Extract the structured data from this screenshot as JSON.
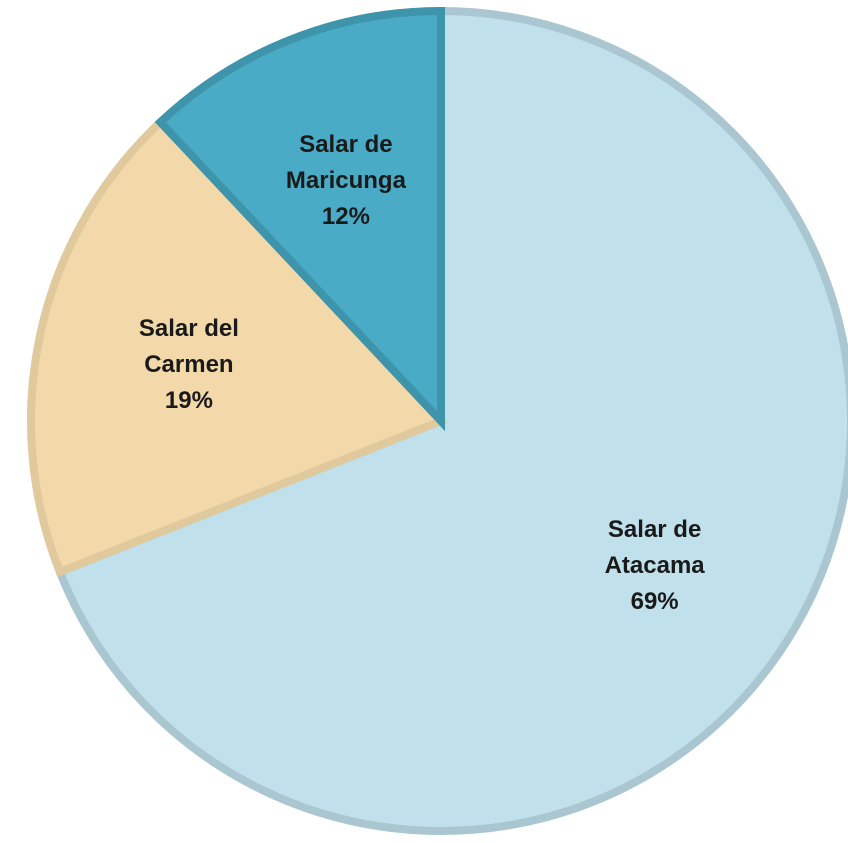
{
  "chart_data": {
    "type": "pie",
    "categories": [
      "Salar de Atacama",
      "Salar del Carmen",
      "Salar de Maricunga"
    ],
    "values": [
      69,
      19,
      12
    ],
    "value_labels": [
      "69%",
      "19%",
      "12%"
    ],
    "colors": [
      "#c0e1eb",
      "#f3d9aa",
      "#4aabc6"
    ],
    "edge_colors": [
      "#a9c6d1",
      "#e0c99d",
      "#3e94ab"
    ]
  }
}
